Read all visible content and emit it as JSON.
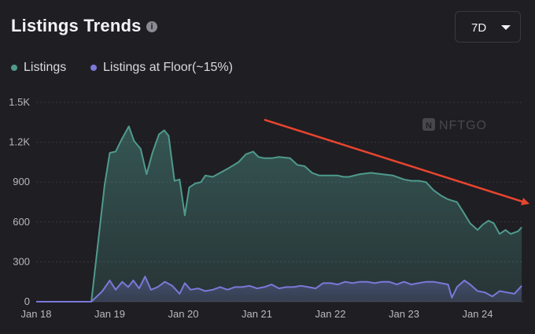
{
  "header": {
    "title": "Listings Trends",
    "info_icon": "info-icon",
    "range_value": "7D",
    "range_icon": "chevron-down-icon"
  },
  "watermark": "NFTGO",
  "colors": {
    "listings": "#4f9a8d",
    "floor": "#7b78d8",
    "annotation_arrow": "#e8452e"
  },
  "chart_data": {
    "type": "area",
    "title": "Listings Trends",
    "legend_position": "top-left",
    "grid": true,
    "ylim": [
      0,
      1500
    ],
    "yticks": [
      {
        "value": 0,
        "label": "0"
      },
      {
        "value": 300,
        "label": "300"
      },
      {
        "value": 600,
        "label": "600"
      },
      {
        "value": 900,
        "label": "900"
      },
      {
        "value": 1200,
        "label": "1.2K"
      },
      {
        "value": 1500,
        "label": "1.5K"
      }
    ],
    "xlim": [
      0,
      6.75
    ],
    "xticks": [
      {
        "value": 0,
        "label": "Jan 18"
      },
      {
        "value": 1,
        "label": "Jan 19"
      },
      {
        "value": 2,
        "label": "Jan 20"
      },
      {
        "value": 3,
        "label": "Jan 21"
      },
      {
        "value": 4,
        "label": "Jan 22"
      },
      {
        "value": 5,
        "label": "Jan 23"
      },
      {
        "value": 6,
        "label": "Jan 24"
      }
    ],
    "annotation": {
      "type": "arrow",
      "from": [
        3.1,
        1370
      ],
      "to": [
        6.75,
        740
      ]
    },
    "series": [
      {
        "name": "Listings",
        "points": [
          [
            0,
            0
          ],
          [
            0.4,
            0
          ],
          [
            0.75,
            0
          ],
          [
            0.93,
            880
          ],
          [
            1.0,
            1120
          ],
          [
            1.08,
            1130
          ],
          [
            1.17,
            1230
          ],
          [
            1.26,
            1320
          ],
          [
            1.33,
            1210
          ],
          [
            1.42,
            1150
          ],
          [
            1.5,
            960
          ],
          [
            1.58,
            1120
          ],
          [
            1.67,
            1260
          ],
          [
            1.74,
            1290
          ],
          [
            1.8,
            1250
          ],
          [
            1.88,
            910
          ],
          [
            1.95,
            920
          ],
          [
            2.02,
            650
          ],
          [
            2.08,
            860
          ],
          [
            2.16,
            890
          ],
          [
            2.24,
            900
          ],
          [
            2.3,
            950
          ],
          [
            2.4,
            940
          ],
          [
            2.5,
            970
          ],
          [
            2.6,
            1000
          ],
          [
            2.75,
            1050
          ],
          [
            2.85,
            1110
          ],
          [
            2.95,
            1130
          ],
          [
            3.02,
            1090
          ],
          [
            3.1,
            1080
          ],
          [
            3.2,
            1080
          ],
          [
            3.3,
            1090
          ],
          [
            3.45,
            1080
          ],
          [
            3.55,
            1030
          ],
          [
            3.65,
            1020
          ],
          [
            3.75,
            970
          ],
          [
            3.85,
            950
          ],
          [
            3.95,
            950
          ],
          [
            4.1,
            950
          ],
          [
            4.18,
            940
          ],
          [
            4.25,
            940
          ],
          [
            4.4,
            960
          ],
          [
            4.55,
            970
          ],
          [
            4.7,
            960
          ],
          [
            4.85,
            950
          ],
          [
            5.0,
            920
          ],
          [
            5.1,
            910
          ],
          [
            5.2,
            910
          ],
          [
            5.3,
            900
          ],
          [
            5.4,
            840
          ],
          [
            5.5,
            800
          ],
          [
            5.6,
            770
          ],
          [
            5.72,
            750
          ],
          [
            5.8,
            680
          ],
          [
            5.9,
            590
          ],
          [
            6.0,
            540
          ],
          [
            6.07,
            580
          ],
          [
            6.15,
            610
          ],
          [
            6.22,
            590
          ],
          [
            6.3,
            510
          ],
          [
            6.38,
            540
          ],
          [
            6.45,
            510
          ],
          [
            6.55,
            530
          ],
          [
            6.6,
            560
          ]
        ]
      },
      {
        "name": "Listings at Floor(~15%)",
        "points": [
          [
            0,
            0
          ],
          [
            0.4,
            0
          ],
          [
            0.75,
            0
          ],
          [
            0.9,
            80
          ],
          [
            1.0,
            160
          ],
          [
            1.08,
            90
          ],
          [
            1.17,
            150
          ],
          [
            1.25,
            110
          ],
          [
            1.32,
            160
          ],
          [
            1.4,
            100
          ],
          [
            1.48,
            190
          ],
          [
            1.56,
            90
          ],
          [
            1.65,
            110
          ],
          [
            1.75,
            150
          ],
          [
            1.85,
            120
          ],
          [
            1.95,
            60
          ],
          [
            2.02,
            140
          ],
          [
            2.1,
            90
          ],
          [
            2.2,
            100
          ],
          [
            2.3,
            80
          ],
          [
            2.4,
            90
          ],
          [
            2.5,
            110
          ],
          [
            2.6,
            90
          ],
          [
            2.7,
            110
          ],
          [
            2.8,
            110
          ],
          [
            2.9,
            120
          ],
          [
            3.0,
            100
          ],
          [
            3.1,
            110
          ],
          [
            3.2,
            130
          ],
          [
            3.3,
            100
          ],
          [
            3.4,
            110
          ],
          [
            3.5,
            110
          ],
          [
            3.6,
            120
          ],
          [
            3.7,
            110
          ],
          [
            3.8,
            100
          ],
          [
            3.9,
            140
          ],
          [
            4.0,
            140
          ],
          [
            4.1,
            130
          ],
          [
            4.2,
            150
          ],
          [
            4.3,
            140
          ],
          [
            4.4,
            150
          ],
          [
            4.5,
            150
          ],
          [
            4.6,
            140
          ],
          [
            4.7,
            150
          ],
          [
            4.8,
            150
          ],
          [
            4.9,
            130
          ],
          [
            5.0,
            150
          ],
          [
            5.1,
            130
          ],
          [
            5.2,
            140
          ],
          [
            5.3,
            150
          ],
          [
            5.4,
            150
          ],
          [
            5.5,
            140
          ],
          [
            5.6,
            130
          ],
          [
            5.65,
            30
          ],
          [
            5.72,
            110
          ],
          [
            5.82,
            160
          ],
          [
            5.9,
            130
          ],
          [
            6.0,
            80
          ],
          [
            6.1,
            70
          ],
          [
            6.2,
            40
          ],
          [
            6.3,
            80
          ],
          [
            6.4,
            70
          ],
          [
            6.5,
            60
          ],
          [
            6.6,
            120
          ]
        ]
      }
    ]
  }
}
